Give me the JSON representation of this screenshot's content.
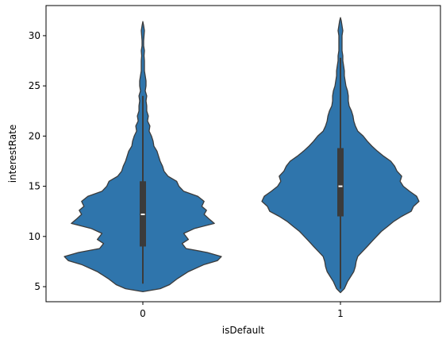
{
  "chart_data": {
    "type": "violin",
    "title": "",
    "xlabel": "isDefault",
    "ylabel": "interestRate",
    "categories": [
      "0",
      "1"
    ],
    "ylim": [
      3.5,
      33.0
    ],
    "yticks": [
      5,
      10,
      15,
      20,
      25,
      30
    ],
    "grid": false,
    "color": "#2f75ac",
    "edge_color": "#3b3b3b",
    "violins": [
      {
        "category": "0",
        "profile": [
          [
            4.5,
            0.0
          ],
          [
            4.8,
            0.22
          ],
          [
            5.2,
            0.34
          ],
          [
            5.8,
            0.44
          ],
          [
            6.5,
            0.58
          ],
          [
            7.2,
            0.78
          ],
          [
            7.6,
            0.95
          ],
          [
            8.0,
            1.0
          ],
          [
            8.4,
            0.82
          ],
          [
            8.8,
            0.55
          ],
          [
            9.3,
            0.5
          ],
          [
            9.7,
            0.58
          ],
          [
            10.3,
            0.52
          ],
          [
            10.8,
            0.66
          ],
          [
            11.3,
            0.91
          ],
          [
            11.7,
            0.85
          ],
          [
            12.2,
            0.78
          ],
          [
            12.6,
            0.81
          ],
          [
            13.0,
            0.75
          ],
          [
            13.5,
            0.78
          ],
          [
            14.0,
            0.7
          ],
          [
            14.5,
            0.52
          ],
          [
            15.0,
            0.46
          ],
          [
            15.5,
            0.43
          ],
          [
            16.0,
            0.32
          ],
          [
            16.5,
            0.27
          ],
          [
            17.0,
            0.25
          ],
          [
            17.5,
            0.22
          ],
          [
            18.0,
            0.2
          ],
          [
            18.5,
            0.18
          ],
          [
            19.0,
            0.14
          ],
          [
            19.5,
            0.13
          ],
          [
            20.0,
            0.11
          ],
          [
            20.5,
            0.08
          ],
          [
            21.0,
            0.09
          ],
          [
            21.5,
            0.06
          ],
          [
            22.0,
            0.07
          ],
          [
            22.5,
            0.05
          ],
          [
            23.0,
            0.05
          ],
          [
            23.5,
            0.04
          ],
          [
            24.0,
            0.05
          ],
          [
            24.5,
            0.03
          ],
          [
            25.0,
            0.04
          ],
          [
            25.5,
            0.04
          ],
          [
            26.0,
            0.03
          ],
          [
            26.5,
            0.02
          ],
          [
            27.0,
            0.02
          ],
          [
            27.5,
            0.02
          ],
          [
            28.0,
            0.015
          ],
          [
            28.5,
            0.02
          ],
          [
            29.0,
            0.01
          ],
          [
            29.5,
            0.01
          ],
          [
            30.0,
            0.015
          ],
          [
            30.5,
            0.02
          ],
          [
            31.0,
            0.01
          ],
          [
            31.4,
            0.0
          ]
        ],
        "q1": 9.0,
        "median": 12.2,
        "q3": 15.5,
        "whisker_low": 5.3,
        "whisker_high": 24.0
      },
      {
        "category": "1",
        "profile": [
          [
            4.4,
            0.0
          ],
          [
            4.8,
            0.05
          ],
          [
            5.5,
            0.09
          ],
          [
            6.0,
            0.13
          ],
          [
            6.5,
            0.17
          ],
          [
            7.0,
            0.19
          ],
          [
            7.5,
            0.2
          ],
          [
            8.0,
            0.22
          ],
          [
            8.5,
            0.28
          ],
          [
            9.0,
            0.34
          ],
          [
            9.5,
            0.4
          ],
          [
            10.0,
            0.46
          ],
          [
            10.5,
            0.52
          ],
          [
            11.0,
            0.6
          ],
          [
            11.5,
            0.68
          ],
          [
            12.0,
            0.78
          ],
          [
            12.5,
            0.9
          ],
          [
            13.0,
            0.93
          ],
          [
            13.5,
            1.0
          ],
          [
            14.0,
            0.97
          ],
          [
            14.5,
            0.88
          ],
          [
            15.0,
            0.8
          ],
          [
            15.5,
            0.76
          ],
          [
            16.0,
            0.78
          ],
          [
            16.5,
            0.72
          ],
          [
            17.0,
            0.69
          ],
          [
            17.5,
            0.64
          ],
          [
            18.0,
            0.55
          ],
          [
            18.5,
            0.47
          ],
          [
            19.0,
            0.4
          ],
          [
            19.5,
            0.34
          ],
          [
            20.0,
            0.29
          ],
          [
            20.5,
            0.22
          ],
          [
            21.0,
            0.19
          ],
          [
            21.5,
            0.17
          ],
          [
            22.0,
            0.16
          ],
          [
            22.5,
            0.14
          ],
          [
            23.0,
            0.11
          ],
          [
            23.5,
            0.1
          ],
          [
            24.0,
            0.1
          ],
          [
            24.5,
            0.09
          ],
          [
            25.0,
            0.07
          ],
          [
            25.5,
            0.06
          ],
          [
            26.0,
            0.05
          ],
          [
            26.5,
            0.05
          ],
          [
            27.0,
            0.04
          ],
          [
            27.5,
            0.03
          ],
          [
            28.0,
            0.03
          ],
          [
            28.5,
            0.02
          ],
          [
            29.0,
            0.02
          ],
          [
            29.5,
            0.02
          ],
          [
            30.0,
            0.02
          ],
          [
            30.5,
            0.03
          ],
          [
            31.0,
            0.02
          ],
          [
            31.5,
            0.01
          ],
          [
            31.8,
            0.0
          ]
        ],
        "q1": 12.0,
        "median": 15.0,
        "q3": 18.8,
        "whisker_low": 4.8,
        "whisker_high": 27.8
      }
    ]
  }
}
